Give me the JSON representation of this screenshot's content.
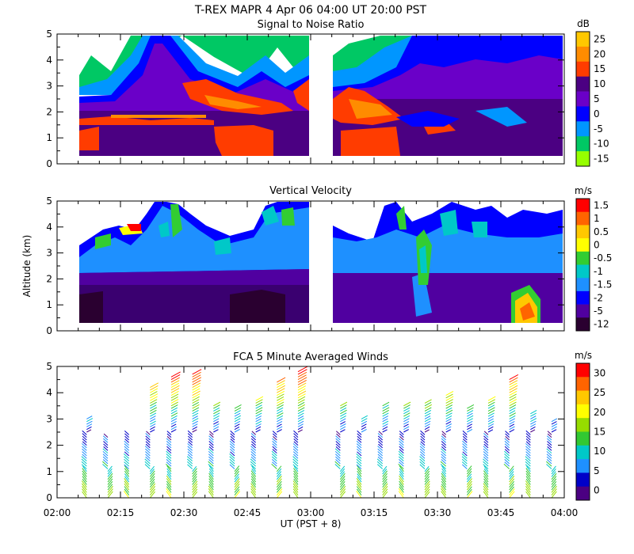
{
  "header": {
    "line1": "T-REX   MAPR   4 Apr 06   04:00 UT   20:00   PST"
  },
  "chart_data": [
    {
      "type": "heatmap",
      "title": "Signal to Noise Ratio",
      "ylabel": "",
      "ylim": [
        0,
        5
      ],
      "yticks": [
        "0",
        "1",
        "2",
        "3",
        "4",
        "5"
      ],
      "xlim_hours_ut": [
        2.0,
        4.0
      ],
      "data_gaps_ut": [
        [
          "02:00",
          "02:08"
        ],
        [
          "02:59",
          "03:10"
        ],
        [
          "03:57",
          "04:00"
        ]
      ],
      "colorbar": {
        "unit": "dB",
        "labels": [
          "25",
          "20",
          "15",
          "10",
          "5",
          "0",
          "-5",
          "-10",
          "-15"
        ],
        "colors": [
          "#ffc800",
          "#ff8c00",
          "#ff3c00",
          "#4b0082",
          "#6a00c8",
          "#0000ff",
          "#0096ff",
          "#00c864",
          "#96ff00"
        ]
      },
      "description_levels": {
        "surface_to_1.3km": "10-15",
        "layer_1.7_to_2.1km": "15-20",
        "upper_wave_bands_3_to_5km": "5 to -15"
      }
    },
    {
      "type": "heatmap",
      "title": "Vertical Velocity",
      "ylabel": "Altitude (km)",
      "ylim": [
        0,
        5
      ],
      "yticks": [
        "0",
        "1",
        "2",
        "3",
        "4",
        "5"
      ],
      "xlim_hours_ut": [
        2.0,
        4.0
      ],
      "colorbar": {
        "unit": "m/s",
        "labels": [
          "1.5",
          "1",
          "0.5",
          "0",
          "-0.5",
          "-1",
          "-1.5",
          "-2",
          "-5",
          "-12"
        ],
        "colors": [
          "#ff0000",
          "#ff6400",
          "#ffc800",
          "#ffff00",
          "#32cd32",
          "#00c8c8",
          "#1e90ff",
          "#0000ff",
          "#5000a0",
          "#2a0030"
        ]
      }
    },
    {
      "type": "scatter",
      "subtype": "wind_barbs",
      "title": "FCA 5 Minute Averaged Winds",
      "ylim": [
        0,
        5
      ],
      "yticks": [
        "0",
        "1",
        "2",
        "3",
        "4",
        "5"
      ],
      "xlabel": "UT  (PST + 8)",
      "xticks": [
        "02:00",
        "02:15",
        "02:30",
        "02:45",
        "03:00",
        "03:15",
        "03:30",
        "03:45",
        "04:00"
      ],
      "profile_times_ut": [
        "02:07",
        "02:12",
        "02:17",
        "02:22",
        "02:27",
        "02:32",
        "02:37",
        "02:42",
        "02:47",
        "02:52",
        "02:57",
        "03:07",
        "03:12",
        "03:17",
        "03:22",
        "03:27",
        "03:32",
        "03:37",
        "03:42",
        "03:47",
        "03:52",
        "03:57"
      ],
      "profile_tops_km": [
        3.0,
        2.3,
        2.4,
        4.2,
        4.6,
        4.7,
        3.5,
        3.4,
        3.7,
        4.4,
        4.8,
        3.5,
        3.0,
        3.5,
        3.5,
        3.6,
        3.9,
        3.4,
        3.7,
        4.5,
        3.2,
        2.9
      ],
      "colorbar": {
        "unit": "m/s",
        "labels": [
          "30",
          "25",
          "20",
          "15",
          "10",
          "5",
          "0"
        ],
        "values": [
          30,
          25,
          20,
          15,
          10,
          5,
          0
        ],
        "colors": [
          "#ff0000",
          "#ff6400",
          "#ffc800",
          "#ffff00",
          "#96dc00",
          "#32c832",
          "#00c8c8",
          "#1e90ff",
          "#0000c8",
          "#4b0082"
        ]
      }
    }
  ]
}
